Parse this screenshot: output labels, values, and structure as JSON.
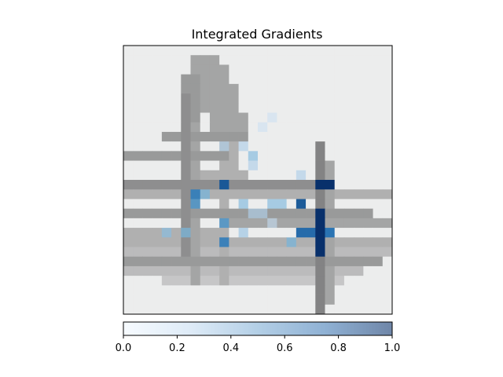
{
  "chart_data": {
    "type": "heatmap",
    "title": "Integrated Gradients",
    "xlabel": "",
    "ylabel": "",
    "grid": false,
    "colormap": "Blues",
    "overlay_alpha": 0.55,
    "rows": 28,
    "cols": 28,
    "colorbar": {
      "orientation": "horizontal",
      "placement": "bottom",
      "range": [
        0.0,
        1.0
      ],
      "ticks": [
        "0.0",
        "0.2",
        "0.4",
        "0.6",
        "0.8",
        "1.0"
      ]
    },
    "attribution_hotspots": [
      {
        "row": 14,
        "col": 20,
        "value": 1.0
      },
      {
        "row": 14,
        "col": 21,
        "value": 1.0
      },
      {
        "row": 17,
        "col": 20,
        "value": 1.0
      },
      {
        "row": 18,
        "col": 20,
        "value": 1.0
      },
      {
        "row": 19,
        "col": 20,
        "value": 1.0
      },
      {
        "row": 20,
        "col": 20,
        "value": 1.0
      },
      {
        "row": 21,
        "col": 20,
        "value": 1.0
      },
      {
        "row": 14,
        "col": 10,
        "value": 0.85
      },
      {
        "row": 16,
        "col": 18,
        "value": 0.85
      },
      {
        "row": 19,
        "col": 18,
        "value": 0.8
      },
      {
        "row": 19,
        "col": 19,
        "value": 0.8
      },
      {
        "row": 19,
        "col": 21,
        "value": 0.75
      },
      {
        "row": 15,
        "col": 7,
        "value": 0.7
      },
      {
        "row": 16,
        "col": 7,
        "value": 0.6
      },
      {
        "row": 18,
        "col": 10,
        "value": 0.6
      },
      {
        "row": 20,
        "col": 10,
        "value": 0.7
      },
      {
        "row": 15,
        "col": 8,
        "value": 0.45
      },
      {
        "row": 16,
        "col": 12,
        "value": 0.4
      },
      {
        "row": 16,
        "col": 15,
        "value": 0.4
      },
      {
        "row": 16,
        "col": 16,
        "value": 0.4
      },
      {
        "row": 20,
        "col": 17,
        "value": 0.45
      },
      {
        "row": 19,
        "col": 4,
        "value": 0.4
      },
      {
        "row": 19,
        "col": 6,
        "value": 0.45
      },
      {
        "row": 10,
        "col": 10,
        "value": 0.3
      },
      {
        "row": 10,
        "col": 12,
        "value": 0.3
      },
      {
        "row": 11,
        "col": 13,
        "value": 0.4
      },
      {
        "row": 12,
        "col": 13,
        "value": 0.3
      },
      {
        "row": 13,
        "col": 18,
        "value": 0.3
      },
      {
        "row": 17,
        "col": 13,
        "value": 0.3
      },
      {
        "row": 17,
        "col": 14,
        "value": 0.3
      },
      {
        "row": 19,
        "col": 12,
        "value": 0.35
      },
      {
        "row": 18,
        "col": 15,
        "value": 0.25
      },
      {
        "row": 7,
        "col": 15,
        "value": 0.2
      },
      {
        "row": 8,
        "col": 14,
        "value": 0.2
      }
    ]
  }
}
